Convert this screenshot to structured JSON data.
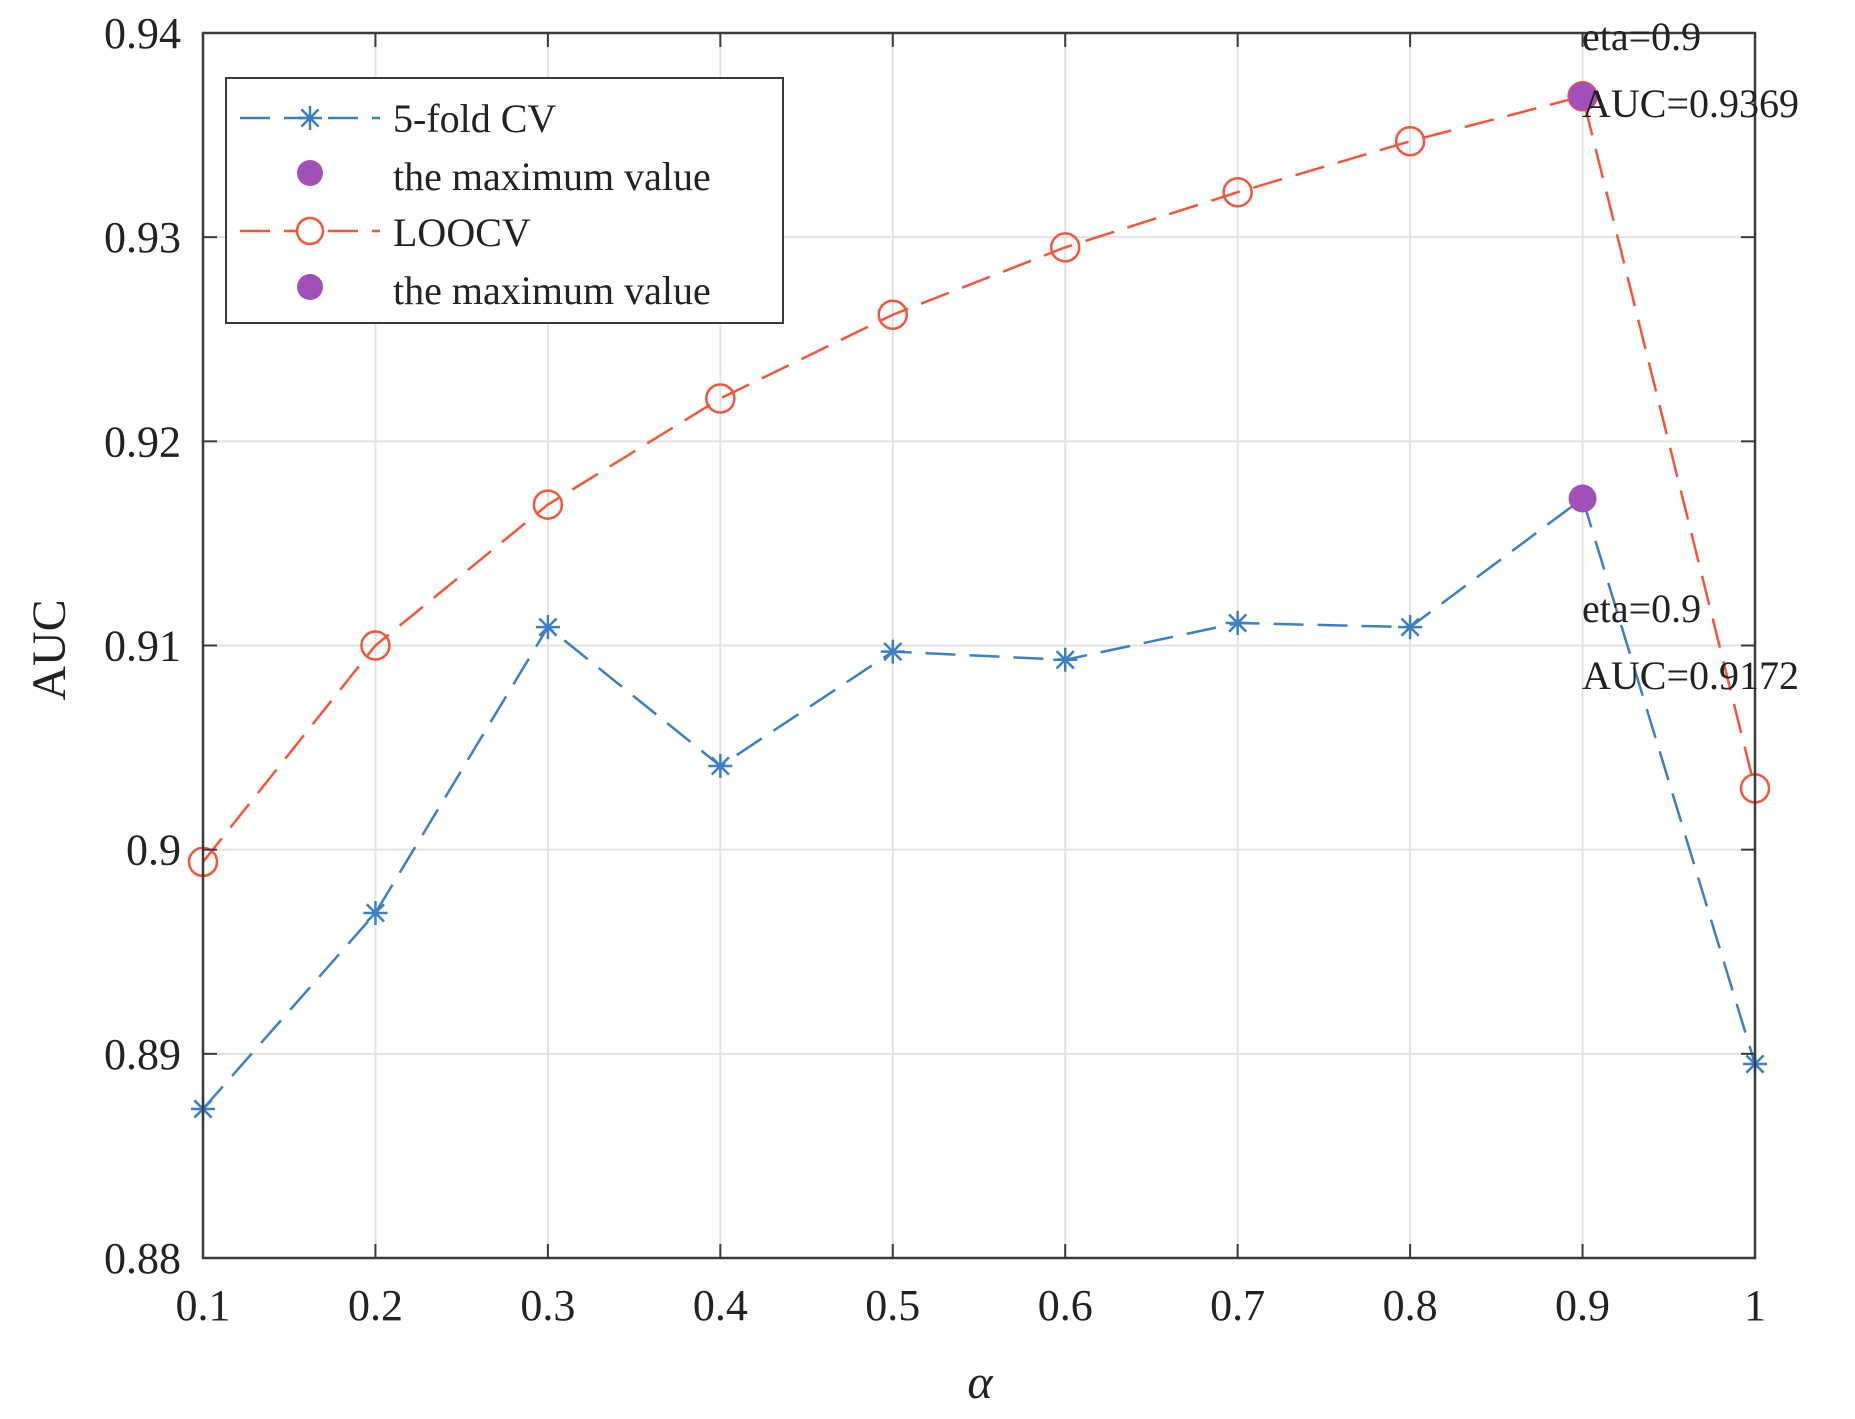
{
  "chart_data": {
    "type": "line",
    "xlabel": "α",
    "ylabel": "AUC",
    "xlim": [
      0.1,
      1
    ],
    "ylim": [
      0.88,
      0.94
    ],
    "grid": true,
    "x_ticks": [
      "0.1",
      "0.2",
      "0.3",
      "0.4",
      "0.5",
      "0.6",
      "0.7",
      "0.8",
      "0.9",
      "1"
    ],
    "y_ticks": [
      "0.88",
      "0.89",
      "0.9",
      "0.91",
      "0.92",
      "0.93",
      "0.94"
    ],
    "x": [
      0.1,
      0.2,
      0.3,
      0.4,
      0.5,
      0.6,
      0.7,
      0.8,
      0.9,
      1.0
    ],
    "series": [
      {
        "name": "5-fold CV",
        "color": "#3b7fc4",
        "marker": "star",
        "linestyle": "dashed",
        "values": [
          0.8873,
          0.8969,
          0.9109,
          0.9041,
          0.9097,
          0.9093,
          0.9111,
          0.9109,
          0.9172,
          0.8895
        ]
      },
      {
        "name": "LOOCV",
        "color": "#f5553b",
        "marker": "circle-open",
        "linestyle": "dashed",
        "values": [
          0.8994,
          0.91,
          0.9169,
          0.9221,
          0.9262,
          0.9295,
          0.9322,
          0.9347,
          0.9369,
          0.903
        ]
      }
    ],
    "maxima": [
      {
        "series": "5-fold CV",
        "x": 0.9,
        "y": 0.9172,
        "color": "#a050b8",
        "label_line1": "eta=0.9",
        "label_line2": "AUC=0.9172"
      },
      {
        "series": "LOOCV",
        "x": 0.9,
        "y": 0.9369,
        "color": "#a050b8",
        "label_line1": "eta=0.9",
        "label_line2": "AUC=0.9369"
      }
    ],
    "legend": {
      "position": "top-left",
      "entries": [
        "5-fold CV",
        "the maximum value",
        "LOOCV",
        "the maximum value"
      ]
    }
  }
}
